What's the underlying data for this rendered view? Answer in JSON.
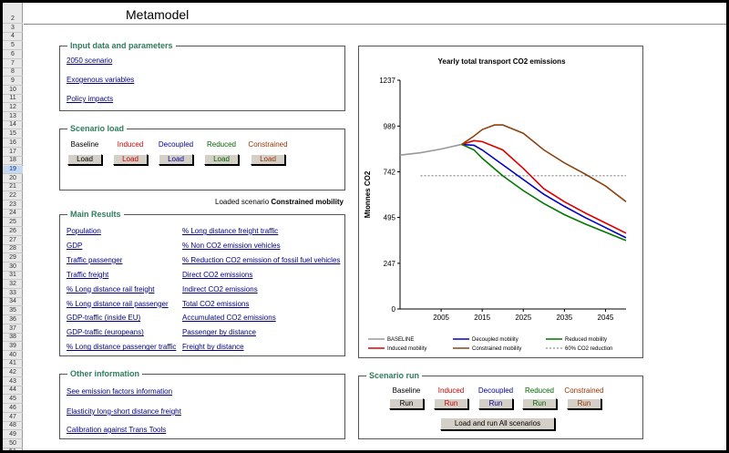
{
  "sheet": {
    "title": "Metamodel",
    "row_numbers": [
      "2",
      "3",
      "4",
      "5",
      "6",
      "7",
      "8",
      "9",
      "10",
      "11",
      "12",
      "13",
      "14",
      "15",
      "16",
      "17",
      "18",
      "19",
      "20",
      "21",
      "22",
      "23",
      "24",
      "25",
      "26",
      "27",
      "28",
      "29",
      "30",
      "31",
      "32",
      "33",
      "34",
      "35",
      "36",
      "37",
      "38",
      "39",
      "40",
      "41",
      "42",
      "43",
      "44",
      "45",
      "46",
      "47",
      "48",
      "49",
      "50",
      "51"
    ],
    "selected_row": "19"
  },
  "input_panel": {
    "title": "Input data and parameters",
    "links": [
      "2050 scenario",
      "Exogenous variables",
      "Policy impacts"
    ]
  },
  "scenario_load": {
    "title": "Scenario load",
    "scenarios": [
      {
        "name": "Baseline",
        "color": "#000000",
        "button": "Load"
      },
      {
        "name": "Induced",
        "color": "#cc0000",
        "button": "Load"
      },
      {
        "name": "Decoupled",
        "color": "#000099",
        "button": "Load"
      },
      {
        "name": "Reduced",
        "color": "#006600",
        "button": "Load"
      },
      {
        "name": "Constrained",
        "color": "#993300",
        "button": "Load"
      }
    ],
    "loaded_label": "Loaded scenario",
    "loaded_value": "Constrained mobility"
  },
  "main_results": {
    "title": "Main Results",
    "left_links": [
      "Population",
      "GDP",
      "Traffic passenger",
      "Traffic freight",
      "% Long distance rail freight",
      "% Long distance rail passenger",
      "GDP-traffic (inside EU)",
      "GDP-traffic (europeans)",
      "% Long distance passenger traffic"
    ],
    "right_links": [
      "% Long distance freight traffic",
      "% Non CO2 emission vehicles",
      "% Reduction CO2 emission of fossil fuel vehicles",
      "Direct CO2 emissions",
      "Indirect CO2 emissions",
      "Total CO2 emissions",
      "Accumulated CO2 emissions",
      "Passenger by distance",
      "Freight by distance"
    ]
  },
  "other_info": {
    "title": "Other information",
    "links": [
      "See emission factors information",
      "Elasticity long-short distance freight",
      "Calibration against Trans Tools"
    ]
  },
  "scenario_run": {
    "title": "Scenario run",
    "scenarios": [
      {
        "name": "Baseline",
        "color": "#000000",
        "button": "Run"
      },
      {
        "name": "Induced",
        "color": "#cc0000",
        "button": "Run"
      },
      {
        "name": "Decoupled",
        "color": "#000099",
        "button": "Run"
      },
      {
        "name": "Reduced",
        "color": "#006600",
        "button": "Run"
      },
      {
        "name": "Constrained",
        "color": "#993300",
        "button": "Run"
      }
    ],
    "run_all": "Load and run All scenarios"
  },
  "chart_data": {
    "type": "line",
    "title": "Yearly total transport CO2 emissions",
    "ylabel": "Mtonnes CO2",
    "xlabel": "",
    "xlim": [
      1995,
      2050
    ],
    "ylim": [
      0,
      1237
    ],
    "yticks": [
      0,
      247,
      495,
      742,
      989,
      1237
    ],
    "xticks": [
      2005,
      2015,
      2025,
      2035,
      2045
    ],
    "series": [
      {
        "name": "BASELINE",
        "color": "#999999",
        "dash": false,
        "x": [
          1995,
          2000,
          2005,
          2010
        ],
        "y": [
          832,
          845,
          865,
          890
        ]
      },
      {
        "name": "Decoupled mobility",
        "color": "#0000cc",
        "dash": false,
        "x": [
          2010,
          2013,
          2015,
          2020,
          2025,
          2030,
          2035,
          2040,
          2045,
          2050
        ],
        "y": [
          890,
          885,
          860,
          780,
          700,
          620,
          555,
          495,
          440,
          385
        ]
      },
      {
        "name": "Reduced mobility",
        "color": "#007700",
        "dash": false,
        "x": [
          2010,
          2013,
          2015,
          2020,
          2025,
          2030,
          2035,
          2040,
          2045,
          2050
        ],
        "y": [
          890,
          860,
          815,
          720,
          640,
          570,
          510,
          460,
          415,
          370
        ]
      },
      {
        "name": "Induced mobility",
        "color": "#dd0000",
        "dash": false,
        "x": [
          2010,
          2013,
          2015,
          2020,
          2025,
          2030,
          2035,
          2040,
          2045,
          2050
        ],
        "y": [
          890,
          910,
          905,
          860,
          760,
          650,
          580,
          520,
          465,
          410
        ]
      },
      {
        "name": "Constrained mobility",
        "color": "#8b4513",
        "dash": false,
        "x": [
          2010,
          2013,
          2015,
          2018,
          2020,
          2025,
          2030,
          2035,
          2040,
          2045,
          2050
        ],
        "y": [
          890,
          935,
          970,
          995,
          995,
          950,
          860,
          790,
          730,
          665,
          580
        ]
      },
      {
        "name": "60% CO2 reduction",
        "color": "#444444",
        "dash": true,
        "x": [
          2000,
          2050
        ],
        "y": [
          720,
          720
        ]
      }
    ],
    "legend_placement": "bottom",
    "grid": false
  }
}
